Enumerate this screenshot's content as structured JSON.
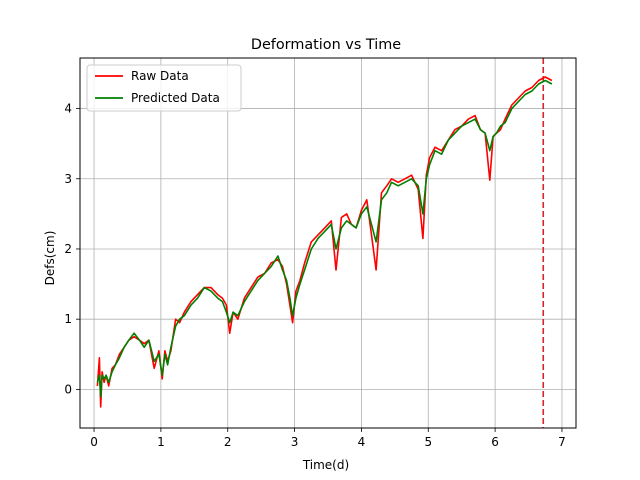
{
  "chart_data": {
    "type": "line",
    "title": "Deformation vs Time",
    "xlabel": "Time(d)",
    "ylabel": "Defs(cm)",
    "xlim": [
      -0.21,
      7.21
    ],
    "ylim": [
      -0.55,
      4.72
    ],
    "xticks": [
      0,
      1,
      2,
      3,
      4,
      5,
      6,
      7
    ],
    "yticks": [
      0,
      1,
      2,
      3,
      4
    ],
    "grid": true,
    "legend_position": "upper-left",
    "vline": {
      "x": 6.72,
      "color": "#d62728",
      "style": "dashed"
    },
    "series": [
      {
        "name": "Raw Data",
        "color": "#ff0000",
        "x": [
          0.05,
          0.08,
          0.1,
          0.12,
          0.15,
          0.18,
          0.22,
          0.27,
          0.32,
          0.38,
          0.45,
          0.52,
          0.6,
          0.68,
          0.75,
          0.82,
          0.9,
          0.97,
          1.02,
          1.06,
          1.1,
          1.15,
          1.22,
          1.28,
          1.35,
          1.45,
          1.55,
          1.65,
          1.75,
          1.85,
          1.92,
          1.98,
          2.03,
          2.08,
          2.15,
          2.25,
          2.35,
          2.45,
          2.55,
          2.65,
          2.75,
          2.82,
          2.88,
          2.93,
          2.97,
          3.02,
          3.08,
          3.15,
          3.25,
          3.35,
          3.45,
          3.55,
          3.62,
          3.7,
          3.78,
          3.85,
          3.92,
          4.0,
          4.08,
          4.15,
          4.22,
          4.3,
          4.38,
          4.45,
          4.55,
          4.65,
          4.75,
          4.85,
          4.92,
          4.97,
          5.02,
          5.1,
          5.2,
          5.3,
          5.4,
          5.5,
          5.6,
          5.7,
          5.78,
          5.85,
          5.92,
          5.97,
          6.02,
          6.08,
          6.15,
          6.25,
          6.35,
          6.45,
          6.55,
          6.65,
          6.75,
          6.85
        ],
        "y": [
          0.05,
          0.45,
          -0.25,
          0.25,
          0.1,
          0.2,
          0.05,
          0.3,
          0.35,
          0.5,
          0.6,
          0.7,
          0.75,
          0.7,
          0.65,
          0.7,
          0.3,
          0.55,
          0.15,
          0.55,
          0.4,
          0.55,
          1.0,
          0.95,
          1.1,
          1.25,
          1.35,
          1.45,
          1.45,
          1.35,
          1.3,
          1.2,
          0.8,
          1.1,
          1.0,
          1.3,
          1.45,
          1.6,
          1.65,
          1.8,
          1.85,
          1.75,
          1.5,
          1.2,
          0.95,
          1.4,
          1.55,
          1.8,
          2.1,
          2.2,
          2.3,
          2.4,
          1.7,
          2.45,
          2.5,
          2.35,
          2.3,
          2.55,
          2.7,
          2.2,
          1.7,
          2.8,
          2.9,
          3.0,
          2.95,
          3.0,
          3.05,
          2.85,
          2.15,
          3.05,
          3.3,
          3.45,
          3.4,
          3.55,
          3.7,
          3.75,
          3.85,
          3.9,
          3.7,
          3.65,
          2.98,
          3.6,
          3.65,
          3.7,
          3.85,
          4.05,
          4.15,
          4.25,
          4.3,
          4.4,
          4.45,
          4.4
        ]
      },
      {
        "name": "Predicted Data",
        "color": "#008000",
        "x": [
          0.05,
          0.08,
          0.1,
          0.12,
          0.15,
          0.18,
          0.22,
          0.27,
          0.32,
          0.38,
          0.45,
          0.52,
          0.6,
          0.68,
          0.75,
          0.82,
          0.9,
          0.97,
          1.02,
          1.06,
          1.1,
          1.15,
          1.22,
          1.28,
          1.35,
          1.45,
          1.55,
          1.65,
          1.75,
          1.85,
          1.92,
          1.98,
          2.03,
          2.08,
          2.15,
          2.25,
          2.35,
          2.45,
          2.55,
          2.65,
          2.75,
          2.82,
          2.88,
          2.93,
          2.97,
          3.02,
          3.08,
          3.15,
          3.25,
          3.35,
          3.45,
          3.55,
          3.62,
          3.7,
          3.78,
          3.85,
          3.92,
          4.0,
          4.08,
          4.15,
          4.22,
          4.3,
          4.38,
          4.45,
          4.55,
          4.65,
          4.75,
          4.85,
          4.92,
          4.97,
          5.02,
          5.1,
          5.2,
          5.3,
          5.4,
          5.5,
          5.6,
          5.7,
          5.78,
          5.85,
          5.92,
          5.97,
          6.02,
          6.08,
          6.15,
          6.25,
          6.35,
          6.45,
          6.55,
          6.65,
          6.75,
          6.85
        ],
        "y": [
          0.1,
          0.2,
          -0.1,
          0.2,
          0.15,
          0.2,
          0.1,
          0.25,
          0.35,
          0.45,
          0.6,
          0.7,
          0.8,
          0.7,
          0.6,
          0.7,
          0.4,
          0.5,
          0.2,
          0.5,
          0.35,
          0.6,
          0.9,
          1.0,
          1.05,
          1.2,
          1.3,
          1.45,
          1.4,
          1.3,
          1.25,
          1.1,
          0.95,
          1.1,
          1.05,
          1.25,
          1.4,
          1.55,
          1.65,
          1.75,
          1.9,
          1.7,
          1.55,
          1.3,
          1.05,
          1.3,
          1.5,
          1.7,
          2.0,
          2.15,
          2.25,
          2.35,
          2.0,
          2.3,
          2.4,
          2.35,
          2.3,
          2.5,
          2.6,
          2.35,
          2.1,
          2.7,
          2.8,
          2.95,
          2.9,
          2.95,
          3.0,
          2.9,
          2.5,
          3.0,
          3.2,
          3.4,
          3.35,
          3.55,
          3.65,
          3.75,
          3.8,
          3.85,
          3.7,
          3.65,
          3.4,
          3.6,
          3.65,
          3.75,
          3.8,
          4.0,
          4.1,
          4.2,
          4.25,
          4.35,
          4.4,
          4.35
        ]
      }
    ]
  }
}
